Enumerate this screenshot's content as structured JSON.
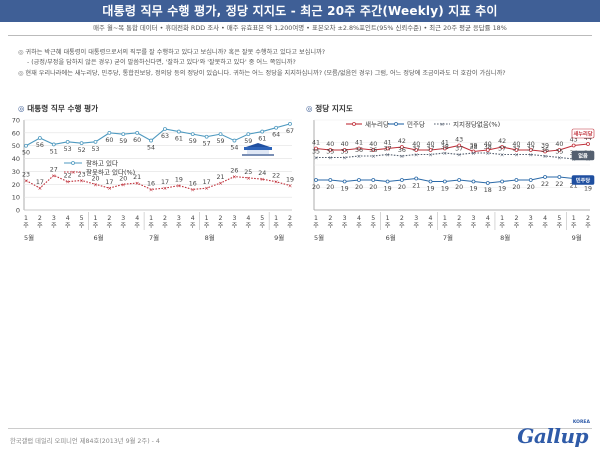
{
  "header": {
    "title": "대통령 직무 수행 평가, 정당 지지도 - 최근 20주 주간(Weekly) 지표 추이",
    "subtitle": "매주 월~목 통합 데이터 • 휴대전화 RDD 조사 • 매주 유효표본 약 1,200여명 • 표본오차 ±2.8%포인트(95% 신뢰수준) • 최근 20주 평균 응답률 18%"
  },
  "questions": {
    "q1": "귀하는 박근혜 대통령이 대통령으로서의 직무를 잘 수행하고 있다고 보십니까? 혹은 잘못 수행하고 있다고 보십니까?",
    "q1_note": "(긍정/부정을 답하지 않은 경우) 굳이 말씀하신다면, '잘하고 있다'와 '잘못하고 있다' 중 어느 쪽입니까?",
    "q2": "현재 우리나라에는 새누리당, 민주당, 통합진보당, 정의당 등의 정당이 있습니다. 귀하는 어느 정당을 지지하십니까? (모름/없음인 경우) 그럼, 어느 정당에 조금이라도 더 호감이 가십니까?",
    "bullet": "◎",
    "sub_mark": "-"
  },
  "panel1": {
    "title": "대통령 직무 수행 평가",
    "marker": "◎"
  },
  "panel2": {
    "title": "정당 지지도",
    "marker": "◎"
  },
  "footer": {
    "text": "한국갤럽 데일리 오피니언 제84호(2013년 9월 2주) - 4"
  },
  "logo": {
    "text": "Gallup",
    "korea": "KOREA"
  },
  "chart_data": [
    {
      "type": "line",
      "title": "대통령 직무 수행 평가",
      "x": [
        "1주",
        "2주",
        "3주",
        "4주",
        "5주",
        "1주",
        "2주",
        "3주",
        "4주",
        "1주",
        "2주",
        "3주",
        "4주",
        "1주",
        "2주",
        "3주",
        "4주",
        "5주",
        "1주",
        "2주"
      ],
      "months": [
        {
          "label": "5월",
          "start": 0
        },
        {
          "label": "6월",
          "start": 5
        },
        {
          "label": "7월",
          "start": 9
        },
        {
          "label": "8월",
          "start": 13
        },
        {
          "label": "9월",
          "start": 18
        }
      ],
      "ylim": [
        0,
        70
      ],
      "yticks": [
        0,
        10,
        20,
        30,
        40,
        50,
        60,
        70
      ],
      "grid": true,
      "legend": "middle",
      "series": [
        {
          "name": "잘하고 있다",
          "color": "#4f9ac0",
          "style": "solid",
          "values": [
            50,
            56,
            51,
            53,
            52,
            53,
            60,
            59,
            60,
            54,
            63,
            61,
            59,
            57,
            59,
            54,
            59,
            61,
            64,
            67
          ]
        },
        {
          "name": "잘못하고 있다(%)",
          "color": "#c0303a",
          "style": "dotted",
          "values": [
            23,
            17,
            27,
            22,
            23,
            20,
            17,
            20,
            21,
            16,
            17,
            19,
            16,
            17,
            21,
            26,
            25,
            24,
            22,
            19
          ]
        }
      ]
    },
    {
      "type": "line",
      "title": "정당 지지도",
      "x": [
        "1주",
        "2주",
        "3주",
        "4주",
        "5주",
        "1주",
        "2주",
        "3주",
        "4주",
        "1주",
        "2주",
        "3주",
        "4주",
        "1주",
        "2주",
        "3주",
        "4주",
        "5주",
        "1주",
        "2주"
      ],
      "months": [
        {
          "label": "5월",
          "start": 0
        },
        {
          "label": "6월",
          "start": 5
        },
        {
          "label": "7월",
          "start": 9
        },
        {
          "label": "8월",
          "start": 13
        },
        {
          "label": "9월",
          "start": 18
        }
      ],
      "ylim": [
        0,
        60
      ],
      "grid": true,
      "legend": "top",
      "series": [
        {
          "name": "새누리당",
          "color": "#c0303a",
          "style": "solid",
          "values": [
            41,
            40,
            40,
            41,
            40,
            41,
            42,
            40,
            40,
            41,
            43,
            39,
            40,
            42,
            40,
            40,
            39,
            40,
            43,
            44
          ]
        },
        {
          "name": "민주당",
          "color": "#2b6aa8",
          "style": "solid",
          "values": [
            20,
            20,
            19,
            20,
            20,
            19,
            20,
            21,
            19,
            19,
            20,
            19,
            18,
            19,
            20,
            20,
            22,
            22,
            21,
            19
          ]
        },
        {
          "name": "지지정당없음(%)",
          "color": "#556070",
          "style": "dotted",
          "values": [
            35,
            35,
            35,
            36,
            36,
            37,
            36,
            37,
            37,
            38,
            37,
            38,
            38,
            37,
            37,
            37,
            36,
            35,
            34,
            34
          ]
        }
      ],
      "end_labels": [
        "새누리당",
        "없음",
        "민주당"
      ]
    }
  ]
}
